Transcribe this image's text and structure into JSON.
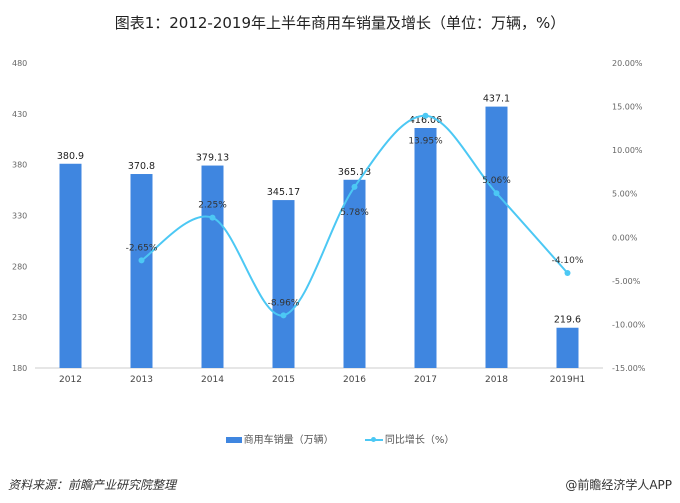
{
  "chart_data": {
    "type": "bar+line",
    "title": "图表1：2012-2019年上半年商用车销量及增长（单位：万辆，%）",
    "categories": [
      "2012",
      "2013",
      "2014",
      "2015",
      "2016",
      "2017",
      "2018",
      "2019H1"
    ],
    "series": [
      {
        "name": "商用车销量（万辆）",
        "type": "bar",
        "axis": "left",
        "color": "#3f86e0",
        "values": [
          380.9,
          370.8,
          379.13,
          345.17,
          365.13,
          416.06,
          437.1,
          219.6
        ],
        "labels": [
          "380.9",
          "370.8",
          "379.13",
          "345.17",
          "365.13",
          "416.06",
          "437.1",
          "219.6"
        ]
      },
      {
        "name": "同比增长（%）",
        "type": "line",
        "axis": "right",
        "color": "#4cc8f4",
        "values": [
          null,
          -2.65,
          2.25,
          -8.96,
          5.78,
          13.95,
          5.06,
          -4.1
        ],
        "labels": [
          "",
          "-2.65%",
          "2.25%",
          "-8.96%",
          "5.78%",
          "13.95%",
          "5.06%",
          "-4.10%"
        ]
      }
    ],
    "yleft": {
      "lim": [
        180,
        480
      ],
      "ticks": [
        "180",
        "230",
        "280",
        "330",
        "380",
        "430",
        "480"
      ]
    },
    "yright": {
      "lim": [
        -15,
        20
      ],
      "ticks": [
        "-15.00%",
        "-10.00%",
        "-5.00%",
        "0.00%",
        "5.00%",
        "10.00%",
        "15.00%",
        "20.00%"
      ]
    },
    "legend": "bottom"
  },
  "footer": {
    "source": "资料来源：前瞻产业研究院整理",
    "credit": "@前瞻经济学人APP"
  }
}
